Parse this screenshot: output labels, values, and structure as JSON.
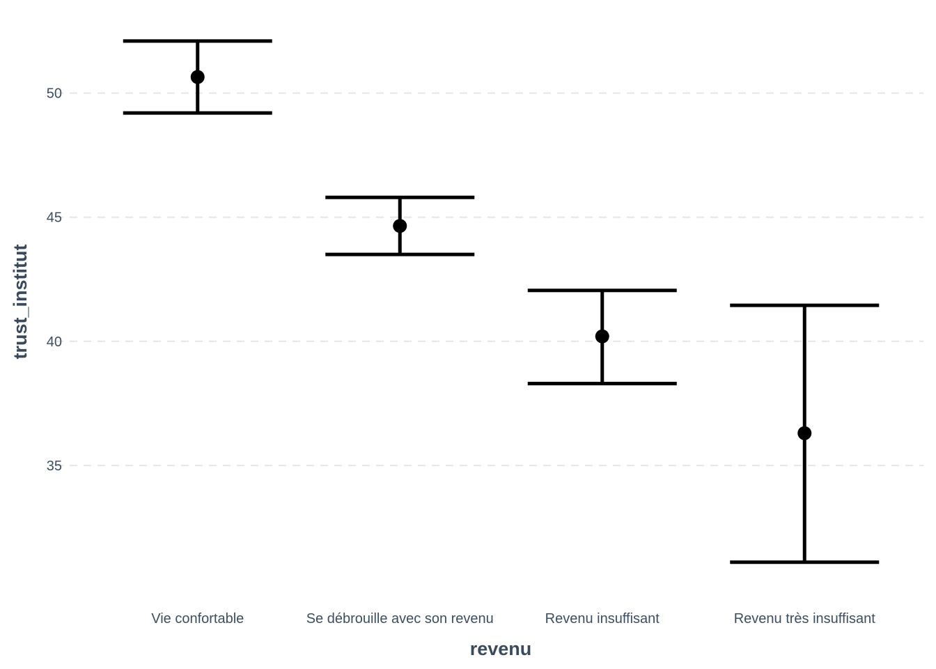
{
  "chart_data": {
    "type": "errorbar",
    "xlabel": "revenu",
    "ylabel": "trust_institut",
    "categories": [
      "Vie confortable",
      "Se débrouille avec son revenu",
      "Revenu insuffisant",
      "Revenu très insuffisant"
    ],
    "values": [
      50.65,
      44.65,
      40.2,
      36.3
    ],
    "lower": [
      49.2,
      43.5,
      38.3,
      31.1
    ],
    "upper": [
      52.1,
      45.8,
      42.05,
      41.45
    ],
    "yticks": [
      35,
      40,
      45,
      50
    ],
    "ylim": [
      30.28,
      52.91
    ],
    "grid": "horizontal-dashed",
    "legend": "none",
    "colors": {
      "mark": "#000000",
      "grid": "#e6e6e6",
      "text": "#3c4e63"
    }
  }
}
